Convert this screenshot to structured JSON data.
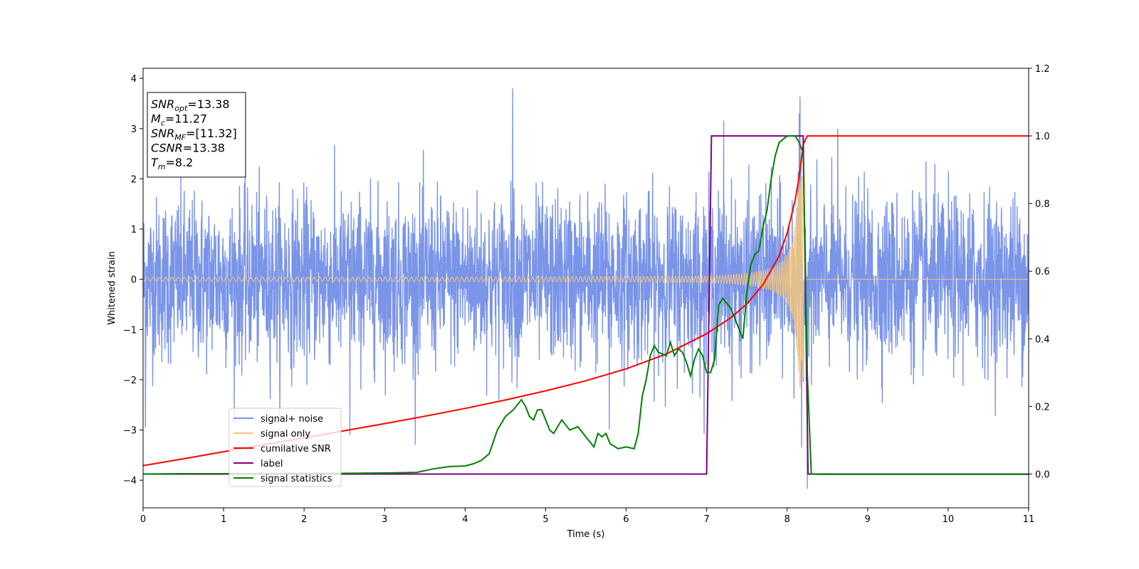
{
  "chart_data": {
    "type": "line",
    "xlabel": "Time (s)",
    "ylabel": "Whitened strain",
    "xlim": [
      0,
      11
    ],
    "ylim_left": [
      -4.55,
      4.2
    ],
    "ylim_right": [
      -0.1,
      1.2
    ],
    "x_ticks": [
      "0",
      "1",
      "2",
      "3",
      "4",
      "5",
      "6",
      "7",
      "8",
      "9",
      "10",
      "11"
    ],
    "y_left_ticks": [
      "−4",
      "−3",
      "−2",
      "−1",
      "0",
      "1",
      "2",
      "3",
      "4"
    ],
    "y_right_ticks": [
      "0.0",
      "0.2",
      "0.4",
      "0.6",
      "0.8",
      "1.0",
      "1.2"
    ],
    "grid": false,
    "legend_position": "lower-left",
    "info_box": {
      "lines": [
        {
          "main": "SNR",
          "sub": "opt",
          "rest": "=13.38"
        },
        {
          "main": "M",
          "sub": "c",
          "rest": "=11.27"
        },
        {
          "main": "SNR",
          "sub": "MF",
          "rest": "=[11.32]"
        },
        {
          "main": "CSNR",
          "sub": "",
          "rest": "=13.38"
        },
        {
          "main": "T",
          "sub": "m",
          "rest": "=8.2"
        }
      ]
    },
    "series": [
      {
        "name": "signal+ noise",
        "color": "#7a94e8",
        "axis": "left",
        "noise_std": 0.82,
        "spikes": [
          [
            4.59,
            3.8
          ],
          [
            8.16,
            3.63
          ],
          [
            7.21,
            3.16
          ],
          [
            8.63,
            3.0
          ],
          [
            8.25,
            -4.17
          ],
          [
            0.03,
            -2.95
          ],
          [
            2.57,
            -3.1
          ],
          [
            5.79,
            -2.99
          ],
          [
            8.18,
            -3.35
          ]
        ]
      },
      {
        "name": "signal only",
        "color": "#f5c77e",
        "axis": "left",
        "chirp": {
          "start": 0,
          "merger": 8.2,
          "amp_start": 0.04,
          "amp_end": 2.15
        }
      },
      {
        "name": "cumilative SNR",
        "color": "#ff0000",
        "axis": "right",
        "x": [
          0,
          0.5,
          1,
          1.5,
          2,
          2.5,
          3,
          3.5,
          4,
          4.5,
          5,
          5.5,
          6,
          6.5,
          7,
          7.3,
          7.5,
          7.7,
          7.9,
          8.0,
          8.1,
          8.15,
          8.2,
          8.25,
          11
        ],
        "values": [
          0.025,
          0.045,
          0.066,
          0.087,
          0.107,
          0.128,
          0.149,
          0.171,
          0.194,
          0.219,
          0.246,
          0.276,
          0.311,
          0.355,
          0.415,
          0.462,
          0.503,
          0.56,
          0.645,
          0.712,
          0.81,
          0.88,
          0.975,
          1.0,
          1.0
        ]
      },
      {
        "name": "label",
        "color": "#800080",
        "axis": "right",
        "x": [
          0,
          7.0,
          7.06,
          8.2,
          8.26,
          11
        ],
        "values": [
          0.0,
          0.0,
          1.0,
          1.0,
          0.0,
          0.0
        ]
      },
      {
        "name": "signal statistics",
        "color": "#008000",
        "axis": "right",
        "x": [
          0,
          0.5,
          1,
          1.5,
          2,
          2.5,
          3,
          3.2,
          3.4,
          3.6,
          3.8,
          4.0,
          4.1,
          4.2,
          4.3,
          4.4,
          4.5,
          4.6,
          4.7,
          4.75,
          4.8,
          4.85,
          4.9,
          4.95,
          5.0,
          5.05,
          5.1,
          5.15,
          5.2,
          5.3,
          5.4,
          5.5,
          5.6,
          5.65,
          5.7,
          5.75,
          5.8,
          5.9,
          6.0,
          6.1,
          6.15,
          6.2,
          6.25,
          6.3,
          6.35,
          6.4,
          6.5,
          6.55,
          6.6,
          6.65,
          6.7,
          6.75,
          6.8,
          6.85,
          6.9,
          6.95,
          7.0,
          7.05,
          7.1,
          7.15,
          7.2,
          7.3,
          7.4,
          7.45,
          7.5,
          7.55,
          7.6,
          7.65,
          7.7,
          7.75,
          7.8,
          7.85,
          7.9,
          7.95,
          8.0,
          8.05,
          8.1,
          8.15,
          8.2,
          8.25,
          8.3,
          8.4,
          9,
          10,
          11
        ],
        "values": [
          0.0,
          0.001,
          0.001,
          0.001,
          0.002,
          0.002,
          0.003,
          0.004,
          0.005,
          0.015,
          0.022,
          0.024,
          0.03,
          0.04,
          0.06,
          0.13,
          0.17,
          0.19,
          0.22,
          0.2,
          0.17,
          0.16,
          0.19,
          0.19,
          0.16,
          0.13,
          0.12,
          0.14,
          0.16,
          0.13,
          0.14,
          0.11,
          0.08,
          0.12,
          0.11,
          0.12,
          0.09,
          0.075,
          0.08,
          0.075,
          0.12,
          0.23,
          0.28,
          0.35,
          0.38,
          0.36,
          0.35,
          0.39,
          0.35,
          0.37,
          0.36,
          0.33,
          0.29,
          0.34,
          0.37,
          0.35,
          0.3,
          0.3,
          0.34,
          0.5,
          0.52,
          0.49,
          0.43,
          0.4,
          0.54,
          0.62,
          0.65,
          0.66,
          0.73,
          0.78,
          0.87,
          0.94,
          0.98,
          0.99,
          1.0,
          1.0,
          1.0,
          0.98,
          0.95,
          0.3,
          0.0,
          -0.001,
          -0.001,
          -0.001,
          -0.001
        ]
      }
    ]
  }
}
